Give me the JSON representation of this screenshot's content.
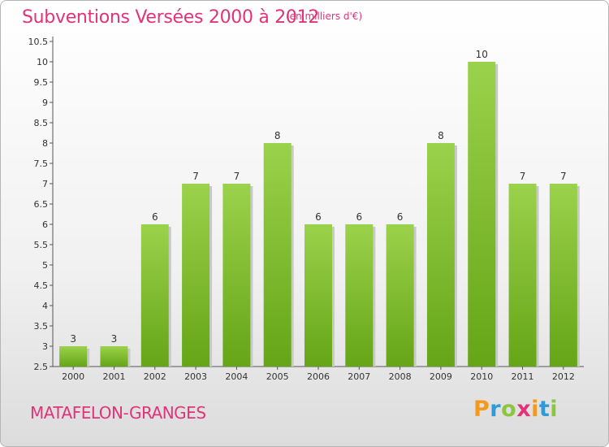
{
  "chart_data": {
    "type": "bar",
    "title": "Subventions Versées 2000 à 2012",
    "subtitle": "(en milliers d'€)",
    "categories": [
      "2000",
      "2001",
      "2002",
      "2003",
      "2004",
      "2005",
      "2006",
      "2007",
      "2008",
      "2009",
      "2010",
      "2011",
      "2012"
    ],
    "values": [
      3,
      3,
      6,
      7,
      7,
      8,
      6,
      6,
      6,
      8,
      10,
      7,
      7
    ],
    "value_labels": [
      "3",
      "3",
      "6",
      "7",
      "7",
      "8",
      "6",
      "6",
      "6",
      "8",
      "10",
      "7",
      "7"
    ],
    "y_ticks": [
      "2.5",
      "3",
      "3.5",
      "4",
      "4.5",
      "5",
      "5.5",
      "6",
      "6.5",
      "7",
      "7.5",
      "8",
      "8.5",
      "9",
      "9.5",
      "10",
      "10.5"
    ],
    "ylim": [
      2.5,
      10.5
    ],
    "grid": false,
    "bar_color_top": "#9bd24c",
    "bar_color_bottom": "#65a516"
  },
  "footer": {
    "commune": "MATAFELON-GRANGES",
    "logo_letters": [
      "P",
      "r",
      "o",
      "x",
      "i",
      "t",
      "i"
    ],
    "logo_colors": [
      "#f29a1f",
      "#2f9ad8",
      "#8cc63e",
      "#e2337a",
      "#f29a1f",
      "#2f9ad8",
      "#8cc63e"
    ]
  },
  "colors": {
    "accent": "#e2337a"
  }
}
